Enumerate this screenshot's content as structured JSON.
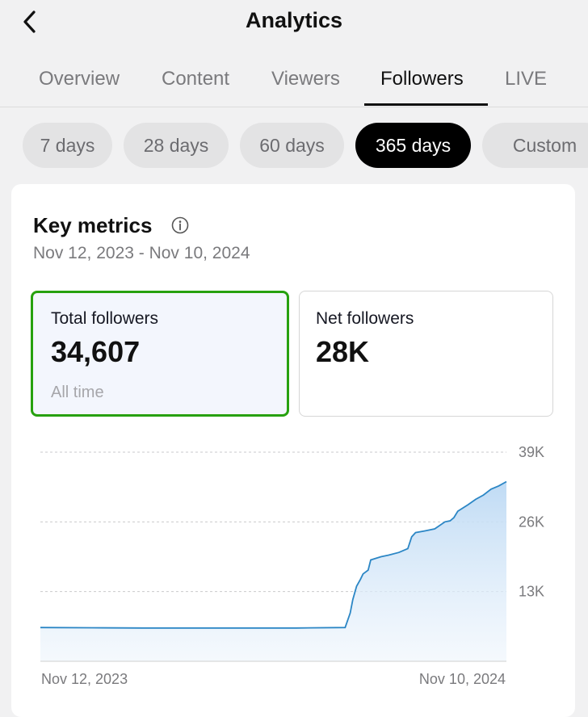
{
  "header": {
    "title": "Analytics",
    "back_icon": "chevron-left-icon"
  },
  "tabs": [
    {
      "label": "Overview",
      "active": false
    },
    {
      "label": "Content",
      "active": false
    },
    {
      "label": "Viewers",
      "active": false
    },
    {
      "label": "Followers",
      "active": true
    },
    {
      "label": "LIVE",
      "active": false
    }
  ],
  "ranges": [
    {
      "label": "7 days",
      "active": false
    },
    {
      "label": "28 days",
      "active": false
    },
    {
      "label": "60 days",
      "active": false
    },
    {
      "label": "365 days",
      "active": true
    },
    {
      "label": "Custom",
      "active": false
    }
  ],
  "key_metrics": {
    "title": "Key metrics",
    "info_icon": "info-icon",
    "date_range": "Nov 12, 2023 - Nov 10, 2024",
    "total": {
      "label": "Total followers",
      "value": "34,607",
      "sub": "All time",
      "selected": true
    },
    "net": {
      "label": "Net followers",
      "value": "28K",
      "selected": false
    }
  },
  "colors": {
    "accent_line": "#2b86c5",
    "selected_border": "#27a10f",
    "active_chip": "#000000"
  },
  "chart_data": {
    "type": "area",
    "x_start_label": "Nov 12, 2023",
    "x_end_label": "Nov 10, 2024",
    "y_ticks": [
      "13K",
      "26K",
      "39K"
    ],
    "ylim": [
      0,
      39000
    ],
    "grid": true,
    "series": [
      {
        "x_days": [
          0,
          40,
          80,
          125,
          170,
          200,
          238,
          242,
          244,
          247,
          250,
          252,
          256,
          258,
          262,
          266,
          272,
          280,
          287,
          290,
          293,
          300,
          308,
          316,
          320,
          323,
          326,
          334,
          340,
          346,
          352,
          358,
          364
        ],
        "values": [
          6300,
          6250,
          6200,
          6200,
          6200,
          6200,
          6300,
          9000,
          11500,
          14000,
          15300,
          16300,
          17000,
          18900,
          19200,
          19500,
          19800,
          20300,
          21000,
          23200,
          24000,
          24300,
          24700,
          26000,
          26200,
          26800,
          28000,
          29200,
          30200,
          31000,
          32100,
          32700,
          33500
        ]
      }
    ]
  }
}
